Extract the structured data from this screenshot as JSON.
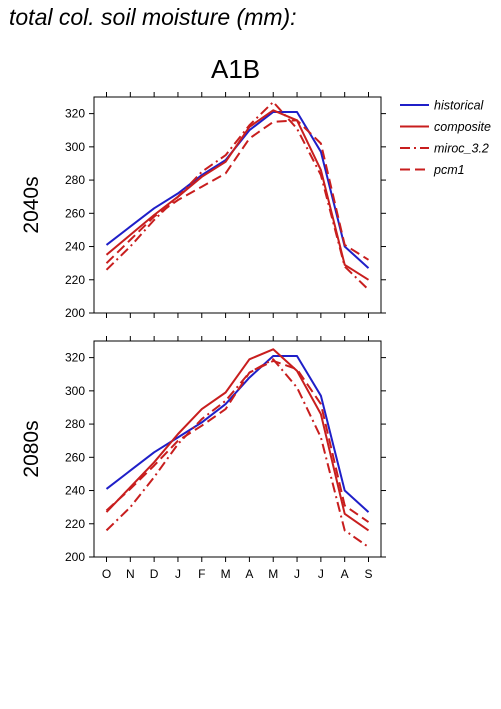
{
  "figure": {
    "title": "total col. soil moisture (mm):",
    "scenario": "A1B"
  },
  "colors": {
    "historical": "#1f1fc8",
    "model": "#c81e1e"
  },
  "chart_data": [
    {
      "type": "line",
      "panel": "2040s",
      "ylabel": "2040s",
      "categories": [
        "O",
        "N",
        "D",
        "J",
        "F",
        "M",
        "A",
        "M",
        "J",
        "J",
        "A",
        "S"
      ],
      "ylim": [
        200,
        330
      ],
      "yticks": [
        200,
        220,
        240,
        260,
        280,
        300,
        320
      ],
      "series": [
        {
          "name": "historical",
          "style": "solid",
          "color": "#1f1fc8",
          "values": [
            241,
            252,
            263,
            272,
            283,
            292,
            310,
            321,
            321,
            297,
            240,
            227
          ]
        },
        {
          "name": "composite",
          "style": "solid",
          "color": "#c81e1e",
          "values": [
            235,
            247,
            259,
            270,
            282,
            291,
            312,
            322,
            316,
            286,
            229,
            220
          ]
        },
        {
          "name": "miroc_3.2",
          "style": "dashdot",
          "color": "#c81e1e",
          "values": [
            226,
            240,
            256,
            270,
            285,
            295,
            313,
            327,
            311,
            283,
            228,
            214
          ]
        },
        {
          "name": "pcm1",
          "style": "dashed",
          "color": "#c81e1e",
          "values": [
            230,
            244,
            258,
            268,
            276,
            284,
            305,
            315,
            316,
            302,
            241,
            232
          ]
        }
      ]
    },
    {
      "type": "line",
      "panel": "2080s",
      "ylabel": "2080s",
      "categories": [
        "O",
        "N",
        "D",
        "J",
        "F",
        "M",
        "A",
        "M",
        "J",
        "J",
        "A",
        "S"
      ],
      "ylim": [
        200,
        330
      ],
      "yticks": [
        200,
        220,
        240,
        260,
        280,
        300,
        320
      ],
      "series": [
        {
          "name": "historical",
          "style": "solid",
          "color": "#1f1fc8",
          "values": [
            241,
            252,
            263,
            272,
            281,
            292,
            308,
            321,
            321,
            297,
            240,
            227
          ]
        },
        {
          "name": "composite",
          "style": "solid",
          "color": "#c81e1e",
          "values": [
            227,
            242,
            257,
            274,
            289,
            299,
            319,
            325,
            312,
            286,
            226,
            216
          ]
        },
        {
          "name": "miroc_3.2",
          "style": "dashdot",
          "color": "#c81e1e",
          "values": [
            216,
            230,
            248,
            268,
            283,
            294,
            311,
            319,
            302,
            272,
            216,
            206
          ]
        },
        {
          "name": "pcm1",
          "style": "dashed",
          "color": "#c81e1e",
          "values": [
            228,
            241,
            255,
            270,
            279,
            289,
            311,
            318,
            313,
            292,
            231,
            221
          ]
        }
      ]
    }
  ],
  "legend": {
    "position": "right",
    "entries": [
      {
        "label": "historical",
        "style": "solid",
        "color": "#1f1fc8"
      },
      {
        "label": "composite",
        "style": "solid",
        "color": "#c81e1e"
      },
      {
        "label": "miroc_3.2",
        "style": "dashdot",
        "color": "#c81e1e"
      },
      {
        "label": "pcm1",
        "style": "dashed",
        "color": "#c81e1e"
      }
    ]
  }
}
